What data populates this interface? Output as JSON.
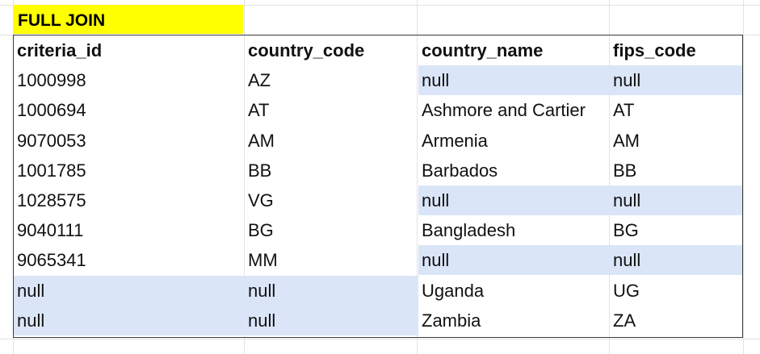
{
  "title": "FULL JOIN",
  "columns": [
    "criteria_id",
    "country_code",
    "country_name",
    "fips_code"
  ],
  "rows": [
    {
      "criteria_id": "1000998",
      "country_code": "AZ",
      "country_name": "null",
      "fips_code": "null",
      "hl": [
        false,
        false,
        true,
        true
      ]
    },
    {
      "criteria_id": "1000694",
      "country_code": "AT",
      "country_name": "Ashmore and Cartier",
      "fips_code": "AT",
      "hl": [
        false,
        false,
        false,
        false
      ]
    },
    {
      "criteria_id": "9070053",
      "country_code": "AM",
      "country_name": "Armenia",
      "fips_code": "AM",
      "hl": [
        false,
        false,
        false,
        false
      ]
    },
    {
      "criteria_id": "1001785",
      "country_code": "BB",
      "country_name": "Barbados",
      "fips_code": "BB",
      "hl": [
        false,
        false,
        false,
        false
      ]
    },
    {
      "criteria_id": "1028575",
      "country_code": "VG",
      "country_name": "null",
      "fips_code": "null",
      "hl": [
        false,
        false,
        true,
        true
      ]
    },
    {
      "criteria_id": "9040111",
      "country_code": "BG",
      "country_name": "Bangladesh",
      "fips_code": "BG",
      "hl": [
        false,
        false,
        false,
        false
      ]
    },
    {
      "criteria_id": "9065341",
      "country_code": "MM",
      "country_name": "null",
      "fips_code": "null",
      "hl": [
        false,
        false,
        true,
        true
      ]
    },
    {
      "criteria_id": "null",
      "country_code": "null",
      "country_name": "Uganda",
      "fips_code": "UG",
      "hl": [
        true,
        true,
        false,
        false
      ]
    },
    {
      "criteria_id": "null",
      "country_code": "null",
      "country_name": "Zambia",
      "fips_code": "ZA",
      "hl": [
        true,
        true,
        false,
        false
      ]
    }
  ],
  "colors": {
    "title_bg": "#ffff00",
    "null_highlight": "#dbe5f8",
    "border": "#3a3a3a"
  }
}
